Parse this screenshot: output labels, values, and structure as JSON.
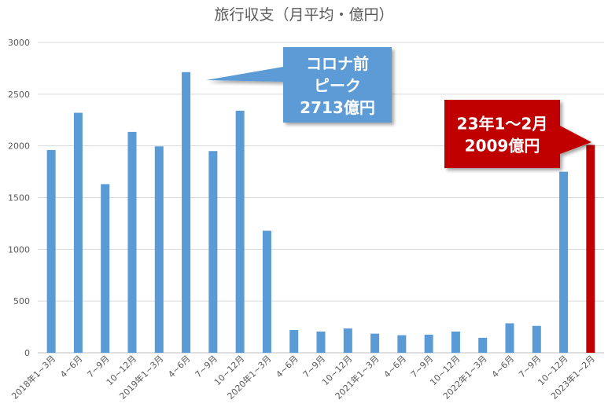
{
  "chart_data": {
    "type": "bar",
    "title": "旅行収支（月平均・億円）",
    "xlabel": "",
    "ylabel": "",
    "ylim": [
      0,
      3000
    ],
    "yticks": [
      0,
      500,
      1000,
      1500,
      2000,
      2500,
      3000
    ],
    "grid": true,
    "categories": [
      "2018年1~3月",
      "4~6月",
      "7~9月",
      "10~12月",
      "2019年1~3月",
      "4~6月",
      "7~9月",
      "10~12月",
      "2020年1~3月",
      "4~6月",
      "7~9月",
      "10~12月",
      "2021年1~3月",
      "4~6月",
      "7~9月",
      "10~12月",
      "2022年1~3月",
      "4~6月",
      "7~9月",
      "10~12月",
      "2023年1~2月"
    ],
    "values": [
      1960,
      2320,
      1630,
      2135,
      1995,
      2713,
      1950,
      2340,
      1180,
      220,
      205,
      235,
      185,
      170,
      175,
      205,
      145,
      285,
      260,
      1750,
      2009
    ],
    "colors": {
      "bar": "#5b9bd5",
      "highlight": "#c00000",
      "callout_blue": "#5b9bd5",
      "callout_red": "#c00000"
    },
    "annotations": [
      {
        "lines": [
          "コロナ前",
          "ピーク",
          "2713億円"
        ],
        "color": "#5b9bd5",
        "target_index": 5
      },
      {
        "lines": [
          "23年1～2月",
          "2009億円"
        ],
        "color": "#c00000",
        "target_index": 20
      }
    ]
  }
}
